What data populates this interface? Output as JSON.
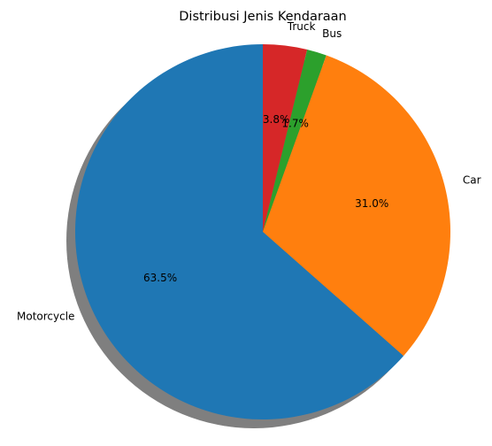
{
  "chart_data": {
    "type": "pie",
    "title": "Distribusi Jenis Kendaraan",
    "categories": [
      "Truck",
      "Bus",
      "Car",
      "Motorcycle"
    ],
    "values": [
      3.8,
      1.7,
      31.0,
      63.5
    ],
    "percent_labels": [
      "3.8%",
      "1.7%",
      "31.0%",
      "63.5%"
    ],
    "colors": [
      "#d62728",
      "#2ca02c",
      "#ff7f0e",
      "#1f77b4"
    ],
    "shadow": true,
    "start_angle_deg": 90,
    "direction": "clockwise"
  }
}
